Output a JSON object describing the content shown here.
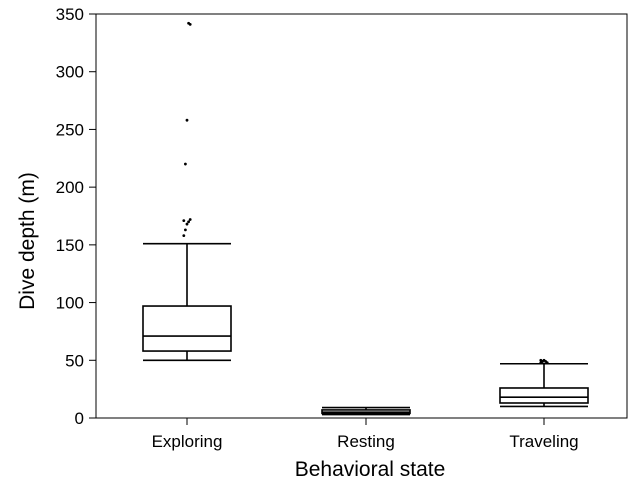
{
  "chart_data": {
    "type": "box",
    "title": "",
    "xlabel": "Behavioral state",
    "ylabel": "Dive depth (m)",
    "ylim": [
      0,
      350
    ],
    "yticks": [
      0,
      50,
      100,
      150,
      200,
      250,
      300,
      350
    ],
    "grid": false,
    "categories": [
      "Exploring",
      "Resting",
      "Traveling"
    ],
    "boxes": [
      {
        "category": "Exploring",
        "whisker_low": 50,
        "q1": 58,
        "median": 71,
        "q3": 97,
        "whisker_high": 151,
        "outliers": [
          158,
          163,
          168,
          170,
          172,
          171,
          220,
          258,
          342,
          341
        ]
      },
      {
        "category": "Resting",
        "whisker_low": 3,
        "q1": 4,
        "median": 5,
        "q3": 7,
        "whisker_high": 9,
        "outliers": []
      },
      {
        "category": "Traveling",
        "whisker_low": 10,
        "q1": 13,
        "median": 18,
        "q3": 26,
        "whisker_high": 47,
        "outliers": [
          48,
          49,
          50,
          49,
          48,
          50,
          49
        ]
      }
    ]
  }
}
